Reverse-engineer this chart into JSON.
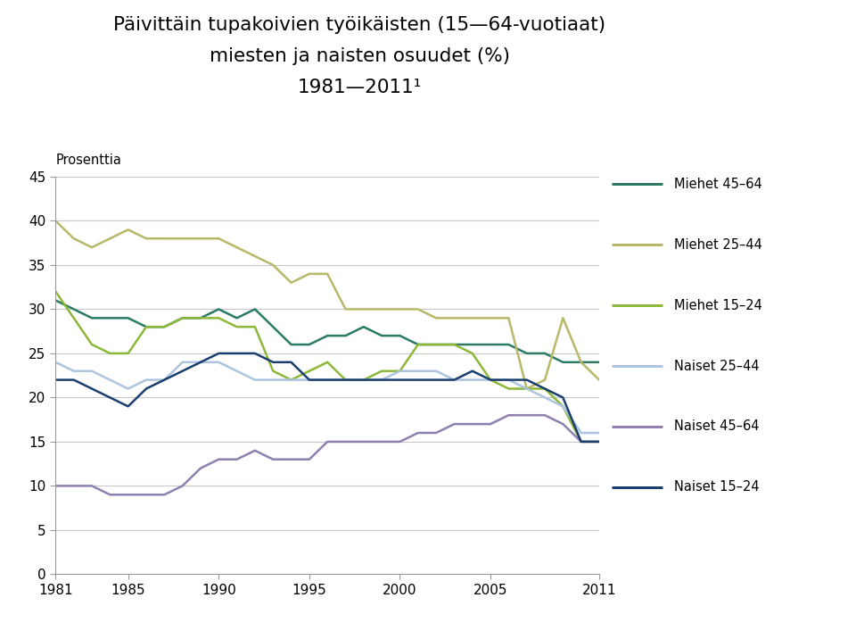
{
  "title": "Päivittäin tupakoivien työikäisten (15—64-vuotiaat)\nmiesten ja naisten osuudet (%)\n1981—2011¹",
  "ylabel": "Prosenttia",
  "xlim": [
    1981,
    2011
  ],
  "ylim": [
    0,
    45
  ],
  "yticks": [
    0,
    5,
    10,
    15,
    20,
    25,
    30,
    35,
    40,
    45
  ],
  "xticks": [
    1981,
    1985,
    1990,
    1995,
    2000,
    2005,
    2011
  ],
  "series": {
    "Miehet 45–64": {
      "color": "#2a7a64",
      "linewidth": 1.8,
      "data": [
        31,
        30,
        29,
        29,
        29,
        28,
        28,
        29,
        29,
        30,
        29,
        30,
        28,
        26,
        26,
        27,
        27,
        28,
        27,
        27,
        26,
        26,
        26,
        26,
        26,
        26,
        25,
        25,
        24,
        24,
        24
      ]
    },
    "Miehet 25–44": {
      "color": "#b8b86a",
      "linewidth": 1.8,
      "data": [
        40,
        38,
        37,
        38,
        39,
        38,
        38,
        38,
        38,
        38,
        37,
        36,
        35,
        33,
        34,
        34,
        30,
        30,
        30,
        30,
        30,
        29,
        29,
        29,
        29,
        29,
        21,
        22,
        29,
        24,
        22
      ]
    },
    "Miehet 15–24": {
      "color": "#8db83a",
      "linewidth": 1.8,
      "data": [
        32,
        29,
        26,
        25,
        25,
        28,
        28,
        29,
        29,
        29,
        28,
        28,
        23,
        22,
        23,
        24,
        22,
        22,
        23,
        23,
        26,
        26,
        26,
        25,
        22,
        21,
        21,
        21,
        19,
        15,
        15
      ]
    },
    "Naiset 25–44": {
      "color": "#adc4e0",
      "linewidth": 1.8,
      "data": [
        24,
        23,
        23,
        22,
        21,
        22,
        22,
        24,
        24,
        24,
        23,
        22,
        22,
        22,
        22,
        22,
        22,
        22,
        22,
        23,
        23,
        23,
        22,
        22,
        22,
        22,
        21,
        20,
        19,
        16,
        16
      ]
    },
    "Naiset 45–64": {
      "color": "#9080b0",
      "linewidth": 1.8,
      "data": [
        10,
        10,
        10,
        9,
        9,
        9,
        9,
        10,
        12,
        13,
        13,
        14,
        13,
        13,
        13,
        15,
        15,
        15,
        15,
        15,
        16,
        16,
        17,
        17,
        17,
        18,
        18,
        18,
        17,
        15,
        15
      ]
    },
    "Naiset 15–24": {
      "color": "#1a3f6f",
      "linewidth": 1.8,
      "data": [
        22,
        22,
        21,
        20,
        19,
        21,
        22,
        23,
        24,
        25,
        25,
        25,
        24,
        24,
        22,
        22,
        22,
        22,
        22,
        22,
        22,
        22,
        22,
        23,
        22,
        22,
        22,
        21,
        20,
        15,
        15
      ]
    }
  },
  "legend_order": [
    "Miehet 45–64",
    "Miehet 25–44",
    "Miehet 15–24",
    "Naiset 25–44",
    "Naiset 45–64",
    "Naiset 15–24"
  ],
  "background_color": "#ffffff",
  "grid_color": "#c8c8c8"
}
